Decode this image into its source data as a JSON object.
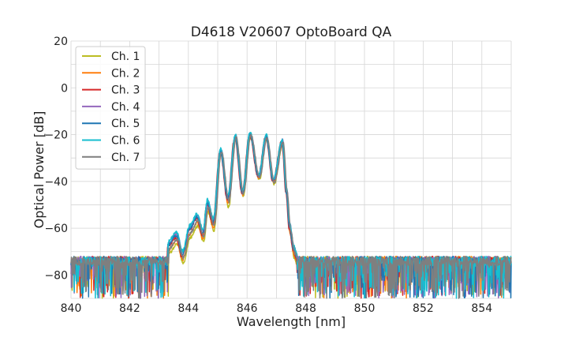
{
  "chart_data": {
    "type": "line",
    "title": "D4618 V20607 OptoBoard QA",
    "xlabel": "Wavelength [nm]",
    "ylabel": "Optical Power [dB]",
    "xlim": [
      840,
      855
    ],
    "ylim": [
      -90,
      20
    ],
    "x_ticks": [
      840,
      842,
      844,
      846,
      848,
      850,
      852,
      854
    ],
    "y_ticks": [
      20,
      0,
      -20,
      -40,
      -60,
      -80
    ],
    "grid": true,
    "minor_grid": true,
    "legend_position": "top-left",
    "noise_floor": {
      "level": -74,
      "spread": 16,
      "range": [
        840,
        855
      ]
    },
    "peak_shape": {
      "x": [
        843.3,
        843.6,
        843.8,
        844.05,
        844.3,
        844.5,
        844.65,
        844.85,
        845.1,
        845.35,
        845.6,
        845.85,
        846.1,
        846.4,
        846.65,
        846.9,
        847.2,
        847.35,
        847.45,
        847.6,
        847.7
      ],
      "y": [
        -68,
        -64,
        -72,
        -61,
        -56,
        -63,
        -50,
        -58,
        -27,
        -48,
        -21,
        -45,
        -20,
        -38,
        -21,
        -40,
        -23,
        -45,
        -60,
        -70,
        -73
      ]
    },
    "series": [
      {
        "name": "Ch. 1",
        "color": "#bcbd22",
        "shift": 0.02,
        "offset": -2.0,
        "seed": 11
      },
      {
        "name": "Ch. 2",
        "color": "#ff7f0e",
        "shift": 0.0,
        "offset": -1.0,
        "seed": 23
      },
      {
        "name": "Ch. 3",
        "color": "#d62728",
        "shift": -0.02,
        "offset": 0.0,
        "seed": 37
      },
      {
        "name": "Ch. 4",
        "color": "#9467bd",
        "shift": 0.01,
        "offset": 1.0,
        "seed": 41
      },
      {
        "name": "Ch. 5",
        "color": "#1f77b4",
        "shift": -0.01,
        "offset": 0.5,
        "seed": 53
      },
      {
        "name": "Ch. 6",
        "color": "#17becf",
        "shift": 0.0,
        "offset": 1.5,
        "seed": 67
      },
      {
        "name": "Ch. 7",
        "color": "#7f7f7f",
        "shift": 0.03,
        "offset": -0.5,
        "seed": 79
      }
    ]
  }
}
